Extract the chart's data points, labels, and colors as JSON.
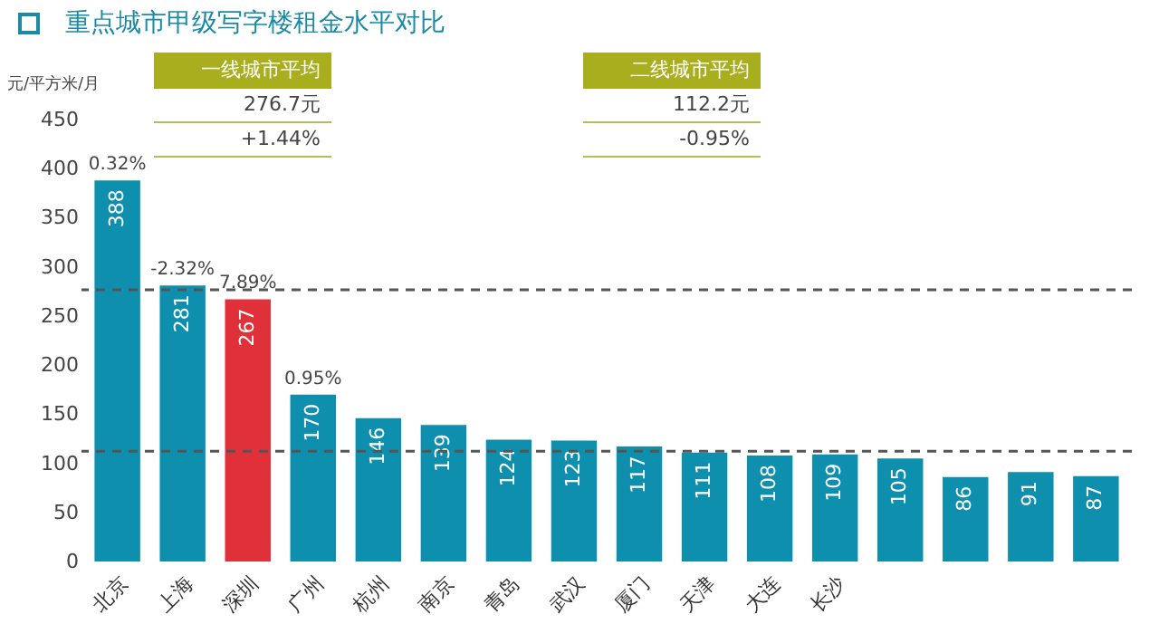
{
  "chart_data": {
    "type": "bar",
    "title": "重点城市甲级写字楼租金水平对比",
    "ylabel": "元/平方米/月",
    "categories": [
      "北京",
      "上海",
      "深圳",
      "广州",
      "杭州",
      "南京",
      "青岛",
      "武汉",
      "厦门",
      "天津",
      "大连",
      "长沙",
      null,
      null,
      null,
      null
    ],
    "values": [
      388,
      281,
      267,
      170,
      146,
      139,
      124,
      123,
      117,
      111,
      108,
      109,
      105,
      86,
      91,
      87
    ],
    "colors": [
      "#0e8fad",
      "#0e8fad",
      "#e0303a",
      "#0e8fad",
      "#0e8fad",
      "#0e8fad",
      "#0e8fad",
      "#0e8fad",
      "#0e8fad",
      "#0e8fad",
      "#0e8fad",
      "#0e8fad",
      "#0e8fad",
      "#0e8fad",
      "#0e8fad",
      "#0e8fad"
    ],
    "data_labels": true,
    "ylim": [
      0,
      450
    ],
    "yticks": [
      0,
      50,
      100,
      150,
      200,
      250,
      300,
      350,
      400,
      450
    ],
    "grid": false,
    "ref_lines": [
      {
        "axis": "y",
        "value": 276.7,
        "color": "#555555",
        "line_style": "dashed"
      },
      {
        "axis": "y",
        "value": 112.2,
        "color": "#555555",
        "line_style": "dashed"
      }
    ],
    "annotations": [
      {
        "text": "0.32%",
        "x": "北京",
        "y": 388
      },
      {
        "text": "-2.32%",
        "x": "上海",
        "y": 281
      },
      {
        "text": "7.89%",
        "x": "深圳",
        "y": 267
      },
      {
        "text": "0.95%",
        "x": "广州",
        "y": 170
      },
      "一线城市平均",
      "276.7元",
      "+1.44%",
      "二线城市平均",
      "112.2元",
      "-0.95%"
    ]
  }
}
